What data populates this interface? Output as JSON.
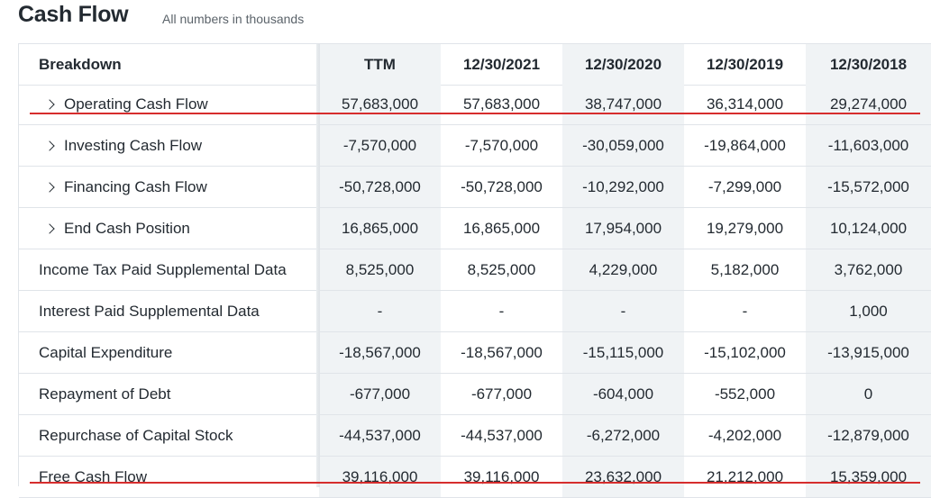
{
  "title": "Cash Flow",
  "subtitle": "All numbers in thousands",
  "header": {
    "breakdown": "Breakdown",
    "columns": [
      "TTM",
      "12/30/2021",
      "12/30/2020",
      "12/30/2019",
      "12/30/2018"
    ]
  },
  "rows": [
    {
      "label": "Operating Cash Flow",
      "expandable": true,
      "values": [
        "57,683,000",
        "57,683,000",
        "38,747,000",
        "36,314,000",
        "29,274,000"
      ]
    },
    {
      "label": "Investing Cash Flow",
      "expandable": true,
      "values": [
        "-7,570,000",
        "-7,570,000",
        "-30,059,000",
        "-19,864,000",
        "-11,603,000"
      ]
    },
    {
      "label": "Financing Cash Flow",
      "expandable": true,
      "values": [
        "-50,728,000",
        "-50,728,000",
        "-10,292,000",
        "-7,299,000",
        "-15,572,000"
      ]
    },
    {
      "label": "End Cash Position",
      "expandable": true,
      "values": [
        "16,865,000",
        "16,865,000",
        "17,954,000",
        "19,279,000",
        "10,124,000"
      ]
    },
    {
      "label": "Income Tax Paid Supplemental Data",
      "expandable": false,
      "values": [
        "8,525,000",
        "8,525,000",
        "4,229,000",
        "5,182,000",
        "3,762,000"
      ]
    },
    {
      "label": "Interest Paid Supplemental Data",
      "expandable": false,
      "values": [
        "-",
        "-",
        "-",
        "-",
        "1,000"
      ]
    },
    {
      "label": "Capital Expenditure",
      "expandable": false,
      "values": [
        "-18,567,000",
        "-18,567,000",
        "-15,115,000",
        "-15,102,000",
        "-13,915,000"
      ]
    },
    {
      "label": "Repayment of Debt",
      "expandable": false,
      "values": [
        "-677,000",
        "-677,000",
        "-604,000",
        "-552,000",
        "0"
      ]
    },
    {
      "label": "Repurchase of Capital Stock",
      "expandable": false,
      "values": [
        "-44,537,000",
        "-44,537,000",
        "-6,272,000",
        "-4,202,000",
        "-12,879,000"
      ]
    },
    {
      "label": "Free Cash Flow",
      "expandable": false,
      "values": [
        "39,116,000",
        "39,116,000",
        "23,632,000",
        "21,212,000",
        "15,359,000"
      ]
    }
  ],
  "colors": {
    "annotation_underline": "#d62d2d",
    "shaded_column": "#f0f3f5"
  }
}
